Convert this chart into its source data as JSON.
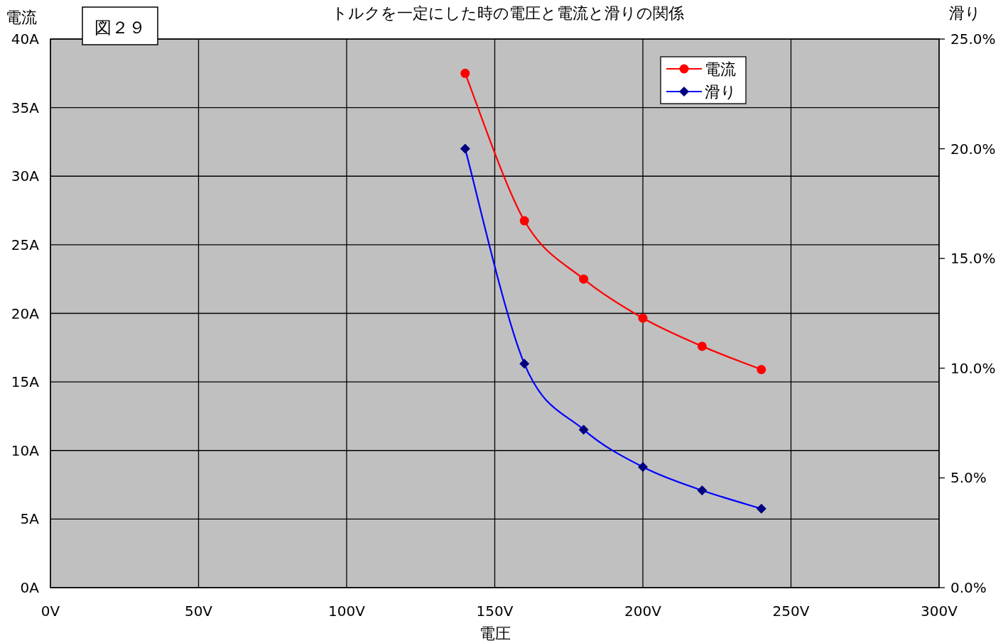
{
  "chart_data": {
    "type": "line",
    "title": "トルクを一定にした時の電圧と電流と滑りの関係",
    "xlabel": "電圧",
    "ylabel": "電流",
    "y2label": "滑り",
    "annotations": [
      "図２９"
    ],
    "x": [
      140,
      160,
      180,
      200,
      220,
      240
    ],
    "series": [
      {
        "name": "電流",
        "color": "#ff0000",
        "marker": "circle",
        "values": [
          37.5,
          26.75,
          22.5,
          19.65,
          17.6,
          15.9
        ]
      },
      {
        "name": "滑り",
        "color": "#0000ff",
        "marker": "diamond",
        "axis": "y2",
        "values": [
          20.0,
          10.2,
          7.2,
          5.5,
          4.43,
          3.6
        ]
      }
    ],
    "xlim": [
      0,
      300
    ],
    "xticks": [
      {
        "value": 0,
        "label": "0V"
      },
      {
        "value": 50,
        "label": "50V"
      },
      {
        "value": 100,
        "label": "100V"
      },
      {
        "value": 150,
        "label": "150V"
      },
      {
        "value": 200,
        "label": "200V"
      },
      {
        "value": 250,
        "label": "250V"
      },
      {
        "value": 300,
        "label": "300V"
      }
    ],
    "ylim": [
      0,
      40
    ],
    "yticks": [
      {
        "value": 0,
        "label": "0A"
      },
      {
        "value": 5,
        "label": "5A"
      },
      {
        "value": 10,
        "label": "10A"
      },
      {
        "value": 15,
        "label": "15A"
      },
      {
        "value": 20,
        "label": "20A"
      },
      {
        "value": 25,
        "label": "25A"
      },
      {
        "value": 30,
        "label": "30A"
      },
      {
        "value": 35,
        "label": "35A"
      },
      {
        "value": 40,
        "label": "40A"
      }
    ],
    "y2lim": [
      0,
      25
    ],
    "y2ticks": [
      {
        "value": 0,
        "label": "0.0%"
      },
      {
        "value": 5,
        "label": "5.0%"
      },
      {
        "value": 10,
        "label": "10.0%"
      },
      {
        "value": 15,
        "label": "15.0%"
      },
      {
        "value": 20,
        "label": "20.0%"
      },
      {
        "value": 25,
        "label": "25.0%"
      }
    ],
    "grid": true,
    "legend": "top right"
  }
}
